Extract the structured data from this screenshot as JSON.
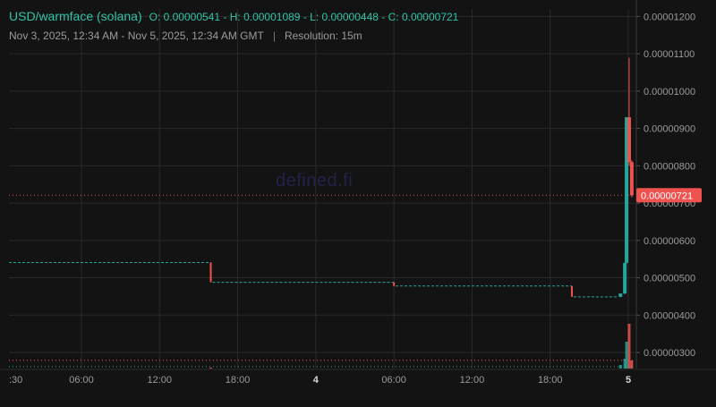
{
  "header": {
    "pair": "USD/warmface (solana)",
    "ohlc": {
      "o_label": "O:",
      "o": "0.00000541",
      "h_label": "H:",
      "h": "0.00001089",
      "l_label": "L:",
      "l": "0.00000448",
      "c_label": "C:",
      "c": "0.00000721"
    },
    "date_range": "Nov 3, 2025, 12:34 AM - Nov 5, 2025, 12:34 AM GMT",
    "separator": "|",
    "resolution": "Resolution: 15m"
  },
  "watermark": "defined.fi",
  "colors": {
    "background": "#131313",
    "grid": "#2a2a2a",
    "up": "#26a69a",
    "down": "#ef5350",
    "text": "#9a9a9a",
    "price_tag": "#ef5350"
  },
  "chart_data": {
    "type": "candlestick",
    "title": "USD/warmface (solana)",
    "resolution": "15m",
    "x_tick_labels": [
      ":30",
      "06:00",
      "12:00",
      "18:00",
      "4",
      "06:00",
      "12:00",
      "18:00",
      "5"
    ],
    "y_tick_labels": [
      "0.00000300",
      "0.00000400",
      "0.00000500",
      "0.00000600",
      "0.00000700",
      "0.00000800",
      "0.00000900",
      "0.00001000",
      "0.00001100",
      "0.00001200"
    ],
    "y_ticks": [
      3e-06,
      4e-06,
      5e-06,
      6e-06,
      7e-06,
      8e-06,
      9e-06,
      1e-05,
      1.1e-05,
      1.2e-05
    ],
    "ylim": [
      2.57e-06,
      1.22e-05
    ],
    "grid": true,
    "last_price": 7.21e-06,
    "last_price_label": "0.00000721",
    "reference_lines": [
      7.21e-06,
      2.79e-06
    ],
    "price_segments": [
      {
        "from_h": -1.6,
        "to_h": 23.9,
        "price": 5.41e-06,
        "dir": "flat"
      },
      {
        "from_h": 23.9,
        "to_h": 24.1,
        "open": 5.41e-06,
        "close": 4.88e-06,
        "dir": "down"
      },
      {
        "from_h": 24.1,
        "to_h": 45.0,
        "price": 4.88e-06,
        "dir": "flat"
      },
      {
        "from_h": 45.0,
        "to_h": 45.2,
        "open": 4.88e-06,
        "close": 4.78e-06,
        "dir": "down"
      },
      {
        "from_h": 45.2,
        "to_h": 65.5,
        "price": 4.78e-06,
        "dir": "flat"
      },
      {
        "from_h": 65.5,
        "to_h": 65.7,
        "open": 4.78e-06,
        "close": 4.49e-06,
        "dir": "down"
      },
      {
        "from_h": 65.7,
        "to_h": 70.8,
        "price": 4.49e-06,
        "dir": "flat"
      }
    ],
    "candles": [
      {
        "t_h": 71.1,
        "open": 4.49e-06,
        "high": 4.58e-06,
        "low": 4.48e-06,
        "close": 4.58e-06
      },
      {
        "t_h": 71.6,
        "open": 4.58e-06,
        "high": 5.4e-06,
        "low": 4.56e-06,
        "close": 5.4e-06
      },
      {
        "t_h": 71.8,
        "open": 5.4e-06,
        "high": 9.3e-06,
        "low": 5.38e-06,
        "close": 9.3e-06
      },
      {
        "t_h": 72.1,
        "open": 9.3e-06,
        "high": 1.089e-05,
        "low": 8e-06,
        "close": 8.1e-06
      },
      {
        "t_h": 72.4,
        "open": 8.1e-06,
        "high": 8.15e-06,
        "low": 7.15e-06,
        "close": 7.21e-06
      }
    ],
    "volume_bars": [
      {
        "t_h": 23.9,
        "value": 0.02,
        "dir": "down"
      },
      {
        "t_h": 71.1,
        "value": 0.08,
        "dir": "up"
      },
      {
        "t_h": 71.6,
        "value": 0.22,
        "dir": "up"
      },
      {
        "t_h": 71.8,
        "value": 0.6,
        "dir": "up"
      },
      {
        "t_h": 72.1,
        "value": 1.0,
        "dir": "down"
      },
      {
        "t_h": 72.4,
        "value": 0.18,
        "dir": "down"
      }
    ]
  }
}
